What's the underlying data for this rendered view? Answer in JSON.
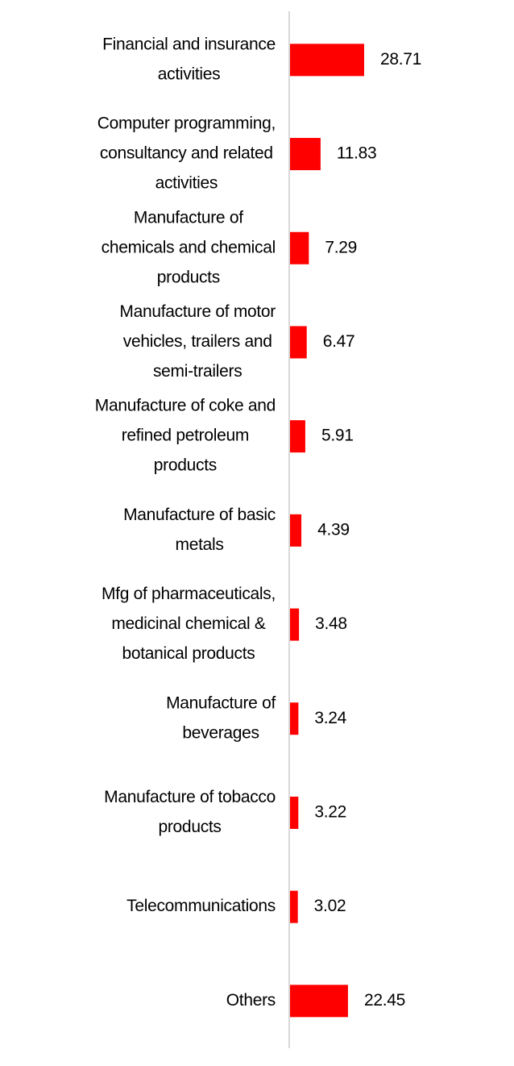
{
  "chart_data": {
    "type": "bar",
    "orientation": "horizontal",
    "title": "",
    "xlabel": "",
    "ylabel": "",
    "xlim": [
      0,
      30
    ],
    "grid": false,
    "legend": "none",
    "bar_color": "#ff0000",
    "axis_color": "#d9d9d9",
    "categories": [
      [
        "Financial and insurance",
        "activities"
      ],
      [
        "Computer programming,",
        "consultancy and related",
        "activities"
      ],
      [
        "Manufacture of",
        "chemicals and chemical",
        "products"
      ],
      [
        "Manufacture of motor",
        "vehicles, trailers and",
        "semi-trailers"
      ],
      [
        "Manufacture of coke and",
        "refined petroleum",
        "products"
      ],
      [
        "Manufacture of basic",
        "metals"
      ],
      [
        "Mfg of pharmaceuticals,",
        "medicinal chemical &",
        "botanical products"
      ],
      [
        "Manufacture of",
        "beverages"
      ],
      [
        "Manufacture of tobacco",
        "products"
      ],
      [
        "Telecommunications"
      ],
      [
        "Others"
      ]
    ],
    "values": [
      28.71,
      11.83,
      7.29,
      6.47,
      5.91,
      4.39,
      3.48,
      3.24,
      3.22,
      3.02,
      22.45
    ],
    "value_labels": [
      "28.71",
      "11.83",
      "7.29",
      "6.47",
      "5.91",
      "4.39",
      "3.48",
      "3.24",
      "3.22",
      "3.02",
      "22.45"
    ]
  }
}
